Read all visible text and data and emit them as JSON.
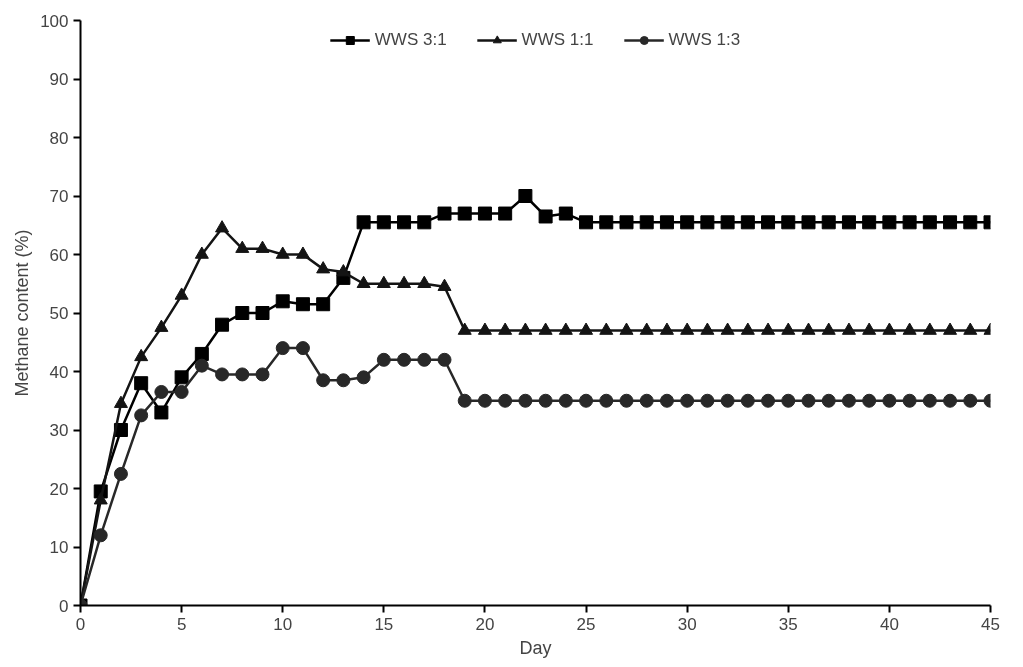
{
  "chart_data": {
    "type": "line",
    "xlabel": "Day",
    "ylabel": "Methane content (%)",
    "xlim": [
      0,
      45
    ],
    "xticks": [
      0,
      5,
      10,
      15,
      20,
      25,
      30,
      35,
      40,
      45
    ],
    "ylim": [
      0,
      100
    ],
    "yticks": [
      0,
      10,
      20,
      30,
      40,
      50,
      60,
      70,
      80,
      90,
      100
    ],
    "grid": false,
    "legend": "top",
    "x": [
      0,
      1,
      2,
      3,
      4,
      5,
      6,
      7,
      8,
      9,
      10,
      11,
      12,
      13,
      14,
      15,
      16,
      17,
      18,
      19,
      20,
      21,
      22,
      23,
      24,
      25,
      26,
      27,
      28,
      29,
      30,
      31,
      32,
      33,
      34,
      35,
      36,
      37,
      38,
      39,
      40,
      41,
      42,
      43,
      44,
      45
    ],
    "series": [
      {
        "name": "WWS 3:1",
        "color": "#000000",
        "marker": "square",
        "values": [
          0,
          19.5,
          30,
          38,
          33,
          39,
          43,
          48,
          50,
          50,
          52,
          51.5,
          51.5,
          56,
          65.5,
          65.5,
          65.5,
          65.5,
          67,
          67,
          67,
          67,
          70,
          66.5,
          67,
          65.5,
          65.5,
          65.5,
          65.5,
          65.5,
          65.5,
          65.5,
          65.5,
          65.5,
          65.5,
          65.5,
          65.5,
          65.5,
          65.5,
          65.5,
          65.5,
          65.5,
          65.5,
          65.5,
          65.5,
          65.5
        ]
      },
      {
        "name": "WWS 1:1",
        "color": "#141414",
        "marker": "triangle",
        "values": [
          0,
          18,
          34.5,
          42.5,
          47.5,
          53,
          60,
          64.5,
          61,
          61,
          60,
          60,
          57.5,
          57,
          55,
          55,
          55,
          55,
          54.5,
          47,
          47,
          47,
          47,
          47,
          47,
          47,
          47,
          47,
          47,
          47,
          47,
          47,
          47,
          47,
          47,
          47,
          47,
          47,
          47,
          47,
          47,
          47,
          47,
          47,
          47,
          47
        ]
      },
      {
        "name": "WWS 1:3",
        "color": "#282828",
        "marker": "circle",
        "values": [
          0,
          12,
          22.5,
          32.5,
          36.5,
          36.5,
          41,
          39.5,
          39.5,
          39.5,
          44,
          44,
          38.5,
          38.5,
          39,
          42,
          42,
          42,
          42,
          35,
          35,
          35,
          35,
          35,
          35,
          35,
          35,
          35,
          35,
          35,
          35,
          35,
          35,
          35,
          35,
          35,
          35,
          35,
          35,
          35,
          35,
          35,
          35,
          35,
          35,
          35
        ]
      }
    ]
  }
}
